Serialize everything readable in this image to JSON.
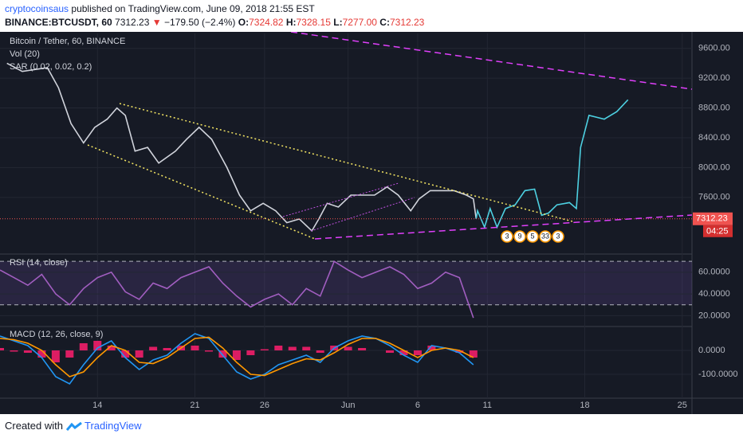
{
  "header": {
    "author": "cryptocoinsaus",
    "published": "published on TradingView.com, June 09, 2018 21:55 EST",
    "symbol": "BINANCE:BTCUSDT, 60",
    "price": "7312.23",
    "change": "−179.50 (−2.4%)",
    "o_label": "O:",
    "open": "7324.82",
    "h_label": "H:",
    "high": "7328.15",
    "l_label": "L:",
    "low": "7277.00",
    "c_label": "C:",
    "close": "7312.23"
  },
  "footer": {
    "created": "Created with",
    "brand": "TradingView"
  },
  "chart_data": [
    {
      "type": "line",
      "title": "Bitcoin / Tether, 60, BINANCE",
      "indicators": [
        "Vol (20)",
        "SAR (0.02, 0.02, 0.2)"
      ],
      "last_label": "7312.23",
      "countdown": "04:25",
      "events": [
        "3",
        "9",
        "5",
        "33",
        "3"
      ],
      "x": [
        7.5,
        8.6,
        10.4,
        11.2,
        12.1,
        13.0,
        13.8,
        14.7,
        15.4,
        16.0,
        16.7,
        17.6,
        18.4,
        19.6,
        20.4,
        21.3,
        22.2,
        23.3,
        24.2,
        25.0,
        25.9,
        26.8,
        27.6,
        28.5,
        29.4,
        29.9,
        30.5,
        31.3,
        32.2,
        33.1,
        33.9,
        34.8,
        35.6,
        36.5,
        37.1,
        37.9,
        38.8,
        39.6,
        40.5,
        41.0,
        41.2,
        41.3,
        41.8,
        42.2,
        42.7,
        43.3,
        44.0,
        44.7,
        45.4,
        45.9,
        46.4,
        47.0,
        47.9,
        48.4,
        48.7,
        49.3,
        50.4,
        51.3,
        52.1
      ],
      "series": [
        {
          "color": "#d1d4dc",
          "values": [
            9400,
            9290,
            9340,
            9070,
            8590,
            8330,
            8540,
            8650,
            8800,
            8700,
            8220,
            8270,
            8060,
            8220,
            8380,
            8540,
            8380,
            8000,
            7630,
            7420,
            7520,
            7420,
            7260,
            7310,
            7150,
            7310,
            7520,
            7470,
            7630,
            7630,
            7630,
            7740,
            7630,
            7420,
            7580,
            7690,
            7690,
            7690,
            7630,
            7580,
            7312.23,
            null,
            null,
            null,
            null,
            null,
            null,
            null,
            null,
            null,
            null,
            null,
            null,
            null,
            null,
            null,
            null,
            null,
            null
          ]
        },
        {
          "color": "#4dd0e1",
          "values": [
            null,
            null,
            null,
            null,
            null,
            null,
            null,
            null,
            null,
            null,
            null,
            null,
            null,
            null,
            null,
            null,
            null,
            null,
            null,
            null,
            null,
            null,
            null,
            null,
            null,
            null,
            null,
            null,
            null,
            null,
            null,
            null,
            null,
            null,
            null,
            null,
            null,
            null,
            null,
            null,
            7312.23,
            7420,
            7200,
            7450,
            7200,
            7450,
            7500,
            7690,
            7710,
            7360,
            7390,
            7500,
            7530,
            7450,
            8270,
            8700,
            8650,
            8750,
            8910
          ]
        }
      ],
      "xlim": [
        7,
        56.7
      ],
      "xticks": [
        14,
        21,
        26,
        {
          "value": 32,
          "label": "Jun"
        },
        {
          "value": 37,
          "label": "6"
        },
        {
          "value": 42,
          "label": "11"
        },
        {
          "value": 49,
          "label": "18"
        },
        {
          "value": 56,
          "label": "25"
        }
      ],
      "ylim": [
        6850,
        9800
      ],
      "yticks": [
        {
          "value": 7600,
          "label": "7600.00"
        },
        {
          "value": 8000,
          "label": "8000.00"
        },
        {
          "value": 8400,
          "label": "8400.00"
        },
        {
          "value": 8800,
          "label": "8800.00"
        },
        {
          "value": 9200,
          "label": "9200.00"
        },
        {
          "value": 9600,
          "label": "9600.00"
        }
      ]
    },
    {
      "type": "line",
      "title": "RSI (14, close)",
      "x": [
        7,
        8,
        9,
        10,
        11,
        12,
        13,
        14,
        15,
        16,
        17,
        18,
        19,
        20,
        21,
        22,
        23,
        24,
        25,
        26,
        27,
        28,
        29,
        30,
        31,
        32,
        33,
        34,
        35,
        36,
        37,
        38,
        39,
        40,
        41
      ],
      "series": [
        {
          "color": "#a15ec0",
          "values": [
            62,
            55,
            48,
            58,
            40,
            30,
            45,
            55,
            60,
            42,
            35,
            50,
            45,
            55,
            60,
            65,
            50,
            38,
            28,
            35,
            40,
            30,
            45,
            38,
            70,
            62,
            55,
            60,
            65,
            58,
            45,
            50,
            60,
            55,
            18
          ]
        }
      ],
      "bands": [
        70,
        30
      ],
      "xlim": [
        7,
        56.7
      ],
      "ylim": [
        10,
        76
      ],
      "yticks": [
        {
          "value": 20,
          "label": "20.0000"
        },
        {
          "value": 40,
          "label": "40.0000"
        },
        {
          "value": 60,
          "label": "60.0000"
        }
      ]
    },
    {
      "type": "line",
      "title": "MACD (12, 26, close, 9)",
      "x": [
        7,
        8,
        9,
        10,
        11,
        12,
        13,
        14,
        15,
        16,
        17,
        18,
        19,
        20,
        21,
        22,
        23,
        24,
        25,
        26,
        27,
        28,
        29,
        30,
        31,
        32,
        33,
        34,
        35,
        36,
        37,
        38,
        39,
        40,
        41
      ],
      "series": [
        {
          "color": "#2196f3",
          "values": [
            60,
            40,
            20,
            -30,
            -110,
            -140,
            -60,
            10,
            40,
            -30,
            -80,
            -40,
            -20,
            30,
            70,
            50,
            -20,
            -90,
            -120,
            -100,
            -60,
            -40,
            -20,
            -50,
            10,
            40,
            60,
            50,
            20,
            -20,
            -50,
            20,
            10,
            -10,
            -60
          ]
        },
        {
          "color": "#ff9800",
          "values": [
            50,
            45,
            30,
            0,
            -60,
            -110,
            -90,
            -30,
            20,
            0,
            -50,
            -55,
            -30,
            10,
            50,
            55,
            10,
            -50,
            -100,
            -105,
            -80,
            -55,
            -35,
            -40,
            -10,
            25,
            50,
            50,
            30,
            0,
            -30,
            0,
            10,
            0,
            -30
          ]
        }
      ],
      "histogram": {
        "color": "#ff1e6e",
        "values": [
          10,
          -5,
          -10,
          -30,
          -50,
          -30,
          30,
          40,
          20,
          -30,
          -30,
          15,
          10,
          20,
          20,
          -5,
          -30,
          -40,
          -20,
          5,
          20,
          15,
          15,
          -10,
          20,
          15,
          10,
          0,
          -10,
          -20,
          -20,
          20,
          0,
          -10,
          -30
        ]
      },
      "xlim": [
        7,
        56.7
      ],
      "ylim": [
        -200,
        100
      ],
      "yticks": [
        {
          "value": -100,
          "label": "-100.0000"
        },
        {
          "value": 0,
          "label": "0.0000"
        }
      ]
    }
  ]
}
